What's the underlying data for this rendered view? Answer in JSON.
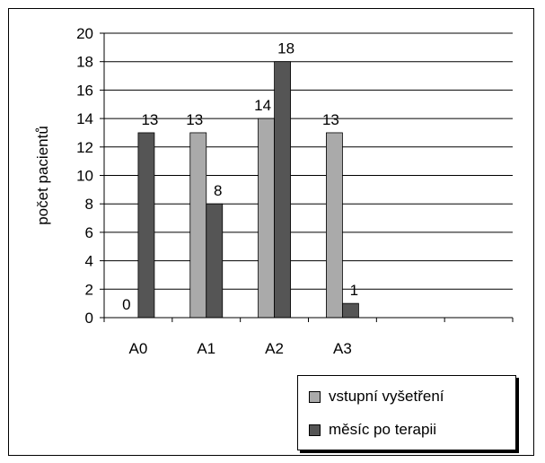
{
  "chart_data": {
    "type": "bar",
    "title": "",
    "xlabel": "",
    "ylabel": "počet pacientů",
    "categories": [
      "A0",
      "A1",
      "A2",
      "A3"
    ],
    "ylim": [
      0,
      20
    ],
    "yticks": [
      0,
      2,
      4,
      6,
      8,
      10,
      12,
      14,
      16,
      18,
      20
    ],
    "grid": true,
    "legend_position": "bottom-right",
    "series": [
      {
        "name": "vstupní vyšetření",
        "values": [
          0,
          13,
          14,
          13
        ],
        "labels": [
          "0",
          "13",
          "14",
          "13"
        ],
        "color": "#aaaaaa"
      },
      {
        "name": "měsíc po terapii",
        "values": [
          13,
          8,
          18,
          1
        ],
        "labels": [
          "13",
          "8",
          "18",
          "1"
        ],
        "color": "#555555"
      }
    ]
  }
}
